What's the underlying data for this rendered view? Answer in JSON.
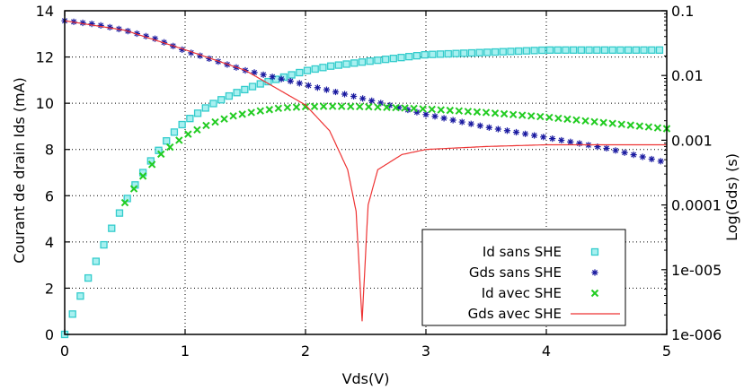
{
  "chart_data": {
    "type": "line",
    "title": "",
    "xlabel": "Vds(V)",
    "ylabel": "Courant de drain Ids (mA)",
    "y2label": "Log(Gds) (s)",
    "xlim": [
      0,
      5
    ],
    "ylim": [
      0,
      14
    ],
    "y2lim": [
      1e-06,
      0.1
    ],
    "y2scale": "log",
    "grid": true,
    "legend_position": "center-right",
    "x_ticks": [
      "0",
      "1",
      "2",
      "3",
      "4",
      "5"
    ],
    "y_ticks": [
      "0",
      "2",
      "4",
      "6",
      "8",
      "10",
      "12",
      "14"
    ],
    "y2_ticks": [
      "1e-006",
      "1e-005",
      "0.0001",
      "0.001",
      "0.01",
      "0.1"
    ],
    "series": [
      {
        "name": "Id sans SHE",
        "axis": "left",
        "marker": "square",
        "color": "#33cccc",
        "x": [
          0,
          0.05,
          0.1,
          0.2,
          0.3,
          0.4,
          0.5,
          0.6,
          0.7,
          0.8,
          0.9,
          1.0,
          1.2,
          1.4,
          1.6,
          1.8,
          2.0,
          2.2,
          2.5,
          3.0,
          3.5,
          4.0,
          4.5,
          5.0
        ],
        "y": [
          0,
          0.7,
          1.3,
          2.5,
          3.6,
          4.7,
          5.7,
          6.6,
          7.4,
          8.1,
          8.7,
          9.2,
          9.9,
          10.4,
          10.8,
          11.1,
          11.4,
          11.6,
          11.8,
          12.1,
          12.2,
          12.3,
          12.3,
          12.3
        ]
      },
      {
        "name": "Gds sans SHE",
        "axis": "right",
        "marker": "asterisk",
        "color": "#1a1aa0",
        "x": [
          0,
          0.25,
          0.5,
          0.75,
          1.0,
          1.5,
          2.0,
          2.5,
          3.0,
          3.5,
          4.0,
          4.5,
          5.0
        ],
        "y": [
          0.07,
          0.062,
          0.05,
          0.037,
          0.024,
          0.012,
          0.0072,
          0.0043,
          0.0025,
          0.0016,
          0.0011,
          0.00075,
          0.00045
        ]
      },
      {
        "name": "Id avec SHE",
        "axis": "left",
        "marker": "x",
        "color": "#22cc22",
        "x": [
          0.5,
          0.6,
          0.7,
          0.8,
          0.9,
          1.0,
          1.2,
          1.4,
          1.6,
          1.8,
          2.0,
          2.2,
          2.5,
          2.8,
          3.0,
          3.5,
          4.0,
          4.5,
          5.0
        ],
        "y": [
          5.7,
          6.5,
          7.2,
          7.8,
          8.2,
          8.6,
          9.1,
          9.45,
          9.65,
          9.8,
          9.85,
          9.87,
          9.85,
          9.8,
          9.75,
          9.6,
          9.4,
          9.15,
          8.9
        ]
      },
      {
        "name": "Gds avec SHE",
        "axis": "right",
        "marker": "line",
        "color": "#ee3333",
        "x": [
          0,
          0.5,
          1.0,
          1.5,
          2.0,
          2.2,
          2.35,
          2.42,
          2.47,
          2.52,
          2.6,
          2.8,
          3.0,
          3.5,
          4.0,
          4.5,
          5.0
        ],
        "y": [
          0.07,
          0.05,
          0.025,
          0.012,
          0.0035,
          0.0014,
          0.00035,
          8e-05,
          1.6e-06,
          0.0001,
          0.00035,
          0.0006,
          0.00072,
          0.0008,
          0.00085,
          0.00085,
          0.00085
        ]
      }
    ]
  }
}
